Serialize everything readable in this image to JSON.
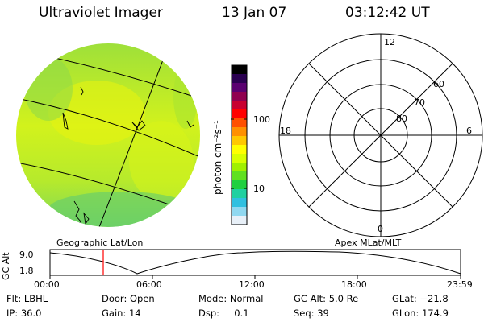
{
  "header": {
    "instrument": "Ultraviolet Imager",
    "date": "13 Jan 07",
    "time": "03:12:42 UT"
  },
  "geo_panel": {
    "label": "Geographic Lat/Lon"
  },
  "color_bar": {
    "unit_label": "photon cm⁻²s⁻¹",
    "ticks": [
      {
        "value": "100"
      },
      {
        "value": "10"
      }
    ],
    "colors": [
      "#000000",
      "#2a0050",
      "#5a0070",
      "#900050",
      "#c80030",
      "#ff0000",
      "#ff5000",
      "#ff9000",
      "#ffc800",
      "#ffff00",
      "#d8ff00",
      "#a0f000",
      "#60e020",
      "#20d040",
      "#20d0a0",
      "#30c0e0",
      "#90d8f0",
      "#e8f0f8"
    ]
  },
  "polar_panel": {
    "label": "Apex MLat/MLT",
    "mlt_labels": {
      "top": "12",
      "bottom": "0",
      "left": "18",
      "right": "6"
    },
    "lat_labels": [
      "60",
      "70",
      "80"
    ]
  },
  "altitude_plot": {
    "ylabel": "GC Alt",
    "ymax_label": "9.0",
    "ymin_label": "1.8",
    "x_ticks": [
      "00:00",
      "06:00",
      "12:00",
      "18:00",
      "23:59"
    ]
  },
  "info": {
    "flt": "Flt: LBHL",
    "ip": "IP: 36.0",
    "door": "Door: Open",
    "gain": "Gain: 14",
    "mode": "Mode: Normal",
    "dsp": "Dsp:     0.1",
    "gcalt": "GC Alt: 5.0 Re",
    "seq": "Seq: 39",
    "glat": "GLat: −21.8",
    "glon": "GLon: 174.9"
  }
}
